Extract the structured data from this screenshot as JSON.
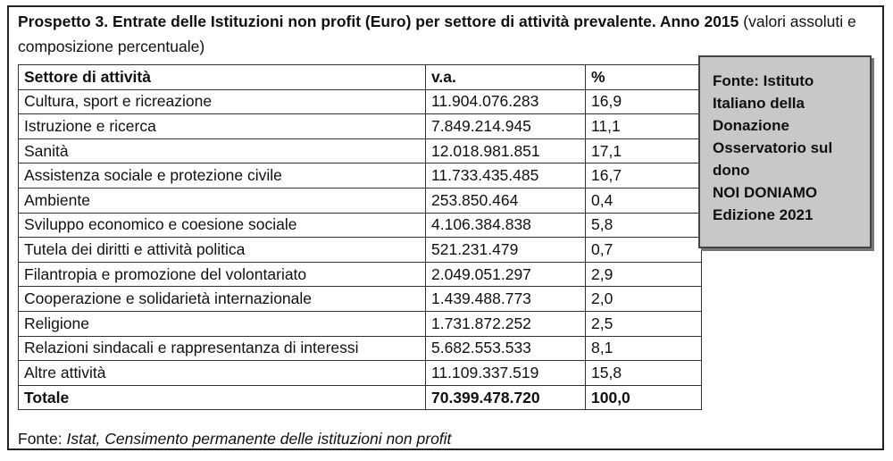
{
  "title": {
    "bold_text": "Prospetto 3. Entrate delle Istituzioni non profit (Euro) per settore di attività prevalente. Anno 2015",
    "normal_text": " (valori assoluti e composizione percentuale)"
  },
  "table": {
    "headers": [
      "Settore di attività",
      "v.a.",
      "%"
    ],
    "rows": [
      {
        "sector": "Cultura, sport e ricreazione",
        "value": "11.904.076.283",
        "pct": "16,9"
      },
      {
        "sector": "Istruzione e ricerca",
        "value": "7.849.214.945",
        "pct": "11,1"
      },
      {
        "sector": "Sanità",
        "value": "12.018.981.851",
        "pct": "17,1"
      },
      {
        "sector": "Assistenza sociale e protezione civile",
        "value": "11.733.435.485",
        "pct": "16,7"
      },
      {
        "sector": "Ambiente",
        "value": "253.850.464",
        "pct": "0,4"
      },
      {
        "sector": "Sviluppo economico e coesione sociale",
        "value": "4.106.384.838",
        "pct": "5,8"
      },
      {
        "sector": "Tutela dei diritti e attività politica",
        "value": "521.231.479",
        "pct": "0,7"
      },
      {
        "sector": "Filantropia e promozione del volontariato",
        "value": "2.049.051.297",
        "pct": "2,9"
      },
      {
        "sector": "Cooperazione e solidarietà internazionale",
        "value": "1.439.488.773",
        "pct": "2,0"
      },
      {
        "sector": "Religione",
        "value": "1.731.872.252",
        "pct": "2,5"
      },
      {
        "sector": "Relazioni sindacali e rappresentanza di interessi",
        "value": "5.682.553.533",
        "pct": "8,1"
      },
      {
        "sector": "Altre attività",
        "value": "11.109.337.519",
        "pct": "15,8"
      }
    ],
    "total": {
      "sector": "Totale",
      "value": "70.399.478.720",
      "pct": "100,0"
    }
  },
  "source_box": {
    "lines": [
      "Fonte: Istituto",
      "Italiano della",
      "Donazione",
      "Osservatorio sul",
      "dono",
      "NOI DONIAMO",
      "Edizione 2021"
    ]
  },
  "footer": {
    "label": "Fonte:",
    "text": " Istat, Censimento permanente delle istituzioni non profit"
  }
}
